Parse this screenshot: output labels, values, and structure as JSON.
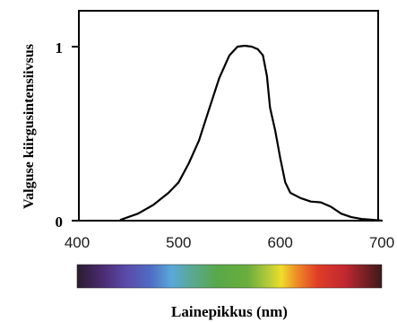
{
  "chart_data": {
    "type": "line",
    "title": "",
    "xlabel": "Lainepikkus (nm)",
    "ylabel": "Valguse kiirgusintensiivsus",
    "xlim": [
      400,
      700
    ],
    "ylim": [
      0,
      1.2
    ],
    "x_ticks": [
      "400",
      "500",
      "600",
      "700"
    ],
    "y_ticks": [
      "0",
      "1"
    ],
    "grid": false,
    "legend": "none",
    "line_color": "#000000",
    "spectrum_bar": true,
    "series": [
      {
        "x": [
          443,
          460,
          475,
          490,
          500,
          510,
          520,
          530,
          540,
          550,
          558,
          565,
          572,
          578,
          583,
          587,
          590,
          595,
          600,
          605,
          610,
          620,
          630,
          640,
          650,
          660,
          670,
          680,
          690,
          700
        ],
        "y": [
          0.005,
          0.04,
          0.09,
          0.16,
          0.22,
          0.33,
          0.46,
          0.64,
          0.82,
          0.95,
          1.0,
          1.005,
          1.0,
          0.985,
          0.95,
          0.83,
          0.65,
          0.52,
          0.36,
          0.22,
          0.16,
          0.13,
          0.11,
          0.105,
          0.08,
          0.04,
          0.02,
          0.01,
          0.005,
          0.0
        ]
      }
    ]
  }
}
